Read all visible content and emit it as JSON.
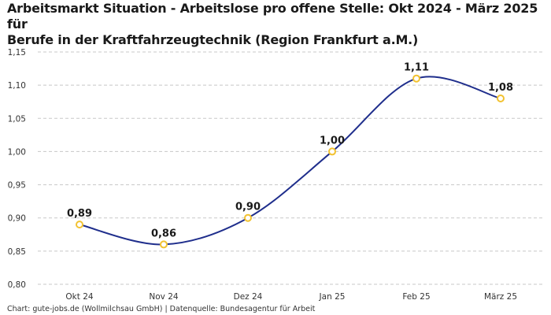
{
  "header": {
    "title_line1": "Arbeitsmarkt Situation - Arbeitslose pro offene Stelle: Okt 2024 - März 2025 für",
    "title_line2": "Berufe in der Kraftfahrzeugtechnik (Region Frankfurt a.M.)"
  },
  "footer": {
    "source": "Chart: gute-jobs.de (Wollmilchsau GmbH) | Datenquelle: Bundesagentur für Arbeit"
  },
  "chart_data": {
    "type": "line",
    "title": "Arbeitsmarkt Situation - Arbeitslose pro offene Stelle: Okt 2024 - März 2025 für Berufe in der Kraftfahrzeugtechnik (Region Frankfurt a.M.)",
    "xlabel": "",
    "ylabel": "",
    "categories": [
      "Okt 24",
      "Nov 24",
      "Dez 24",
      "Jan 25",
      "Feb 25",
      "März 25"
    ],
    "values": [
      0.89,
      0.86,
      0.9,
      1.0,
      1.11,
      1.08
    ],
    "value_labels": [
      "0,89",
      "0,86",
      "0,90",
      "1,00",
      "1,11",
      "1,08"
    ],
    "ylim": [
      0.8,
      1.15
    ],
    "yticks": [
      0.8,
      0.85,
      0.9,
      0.95,
      1.0,
      1.05,
      1.1,
      1.15
    ],
    "ytick_labels": [
      "0,80",
      "0,85",
      "0,90",
      "0,95",
      "1,00",
      "1,05",
      "1,10",
      "1,15"
    ],
    "grid": true,
    "colors": {
      "line": "#1f2e8c",
      "marker": "#f2c230",
      "grid": "#c8c8c8"
    }
  }
}
